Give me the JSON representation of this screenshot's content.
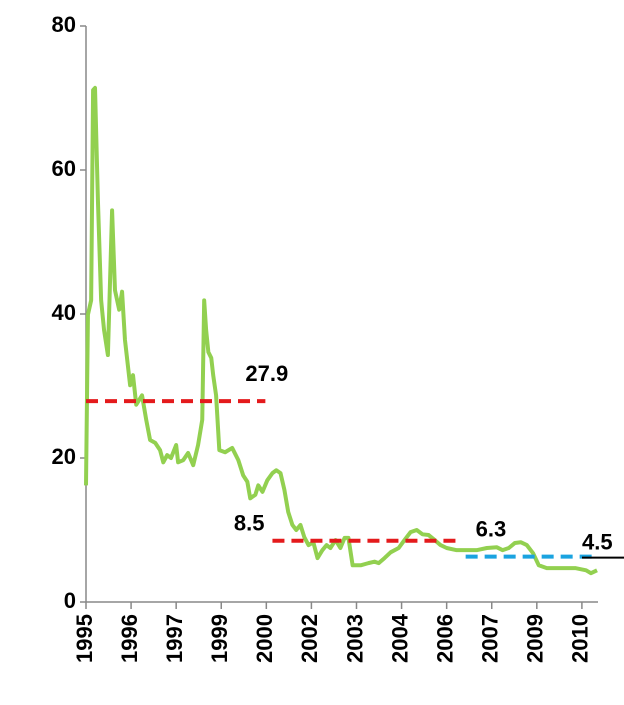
{
  "chart_data": {
    "type": "line",
    "x": [
      1995.0,
      1995.06,
      1995.16,
      1995.22,
      1995.28,
      1995.37,
      1995.47,
      1995.56,
      1995.68,
      1995.81,
      1995.9,
      1996.03,
      1996.12,
      1996.21,
      1996.37,
      1996.46,
      1996.56,
      1996.74,
      1996.87,
      1996.99,
      1997.15,
      1997.3,
      1997.4,
      1997.52,
      1997.64,
      1997.8,
      1997.86,
      1998.02,
      1998.17,
      1998.33,
      1998.48,
      1998.61,
      1998.67,
      1998.73,
      1998.8,
      1998.89,
      1998.95,
      1999.04,
      1999.14,
      1999.32,
      1999.54,
      1999.73,
      1999.88,
      2000.01,
      2000.1,
      2000.26,
      2000.35,
      2000.48,
      2000.63,
      2000.79,
      2000.91,
      2001.04,
      2001.16,
      2001.28,
      2001.41,
      2001.53,
      2001.66,
      2001.78,
      2001.91,
      2002.06,
      2002.19,
      2002.34,
      2002.47,
      2002.59,
      2002.75,
      2002.9,
      2003.03,
      2003.15,
      2003.28,
      2003.53,
      2003.77,
      2003.96,
      2004.09,
      2004.27,
      2004.46,
      2004.71,
      2004.89,
      2005.08,
      2005.27,
      2005.45,
      2005.64,
      2005.83,
      2006.01,
      2006.2,
      2006.51,
      2006.82,
      2007.13,
      2007.45,
      2007.76,
      2007.94,
      2008.13,
      2008.32,
      2008.5,
      2008.69,
      2008.88,
      2009.06,
      2009.31,
      2009.75,
      2010.21,
      2010.53,
      2010.68,
      2010.87
    ],
    "series": [
      {
        "color": "#92d050",
        "values": [
          16.2,
          39.9,
          41.9,
          71.1,
          71.4,
          55.8,
          41.9,
          37.8,
          34.3,
          54.4,
          43.3,
          40.6,
          43.1,
          36.4,
          30.1,
          31.5,
          27.4,
          28.7,
          25.3,
          22.5,
          22.1,
          21.1,
          19.4,
          20.4,
          20.0,
          21.8,
          19.4,
          19.7,
          20.7,
          19.0,
          21.8,
          25.3,
          41.9,
          37.8,
          34.7,
          33.9,
          31.5,
          28.7,
          21.1,
          20.8,
          21.4,
          19.7,
          17.6,
          16.7,
          14.4,
          14.9,
          16.2,
          15.3,
          16.9,
          17.9,
          18.3,
          17.9,
          15.6,
          12.5,
          10.7,
          10.0,
          10.7,
          9.0,
          7.9,
          8.3,
          6.1,
          7.2,
          7.9,
          7.5,
          8.6,
          7.5,
          8.9,
          8.9,
          5.1,
          5.1,
          5.4,
          5.6,
          5.4,
          6.1,
          6.9,
          7.5,
          8.6,
          9.7,
          10.0,
          9.4,
          9.3,
          8.6,
          7.9,
          7.5,
          7.2,
          7.2,
          7.2,
          7.5,
          7.6,
          7.2,
          7.5,
          8.2,
          8.3,
          7.9,
          6.8,
          5.1,
          4.7,
          4.7,
          4.7,
          4.4,
          4.0,
          4.4
        ]
      }
    ],
    "averages": [
      {
        "value": 27.9,
        "x": [
          1995.0,
          2000.57
        ],
        "color": "#e41a1c"
      },
      {
        "value": 8.5,
        "x": [
          2000.79,
          2006.64
        ],
        "color": "#e41a1c"
      },
      {
        "value": 6.3,
        "x": [
          2006.79,
          2010.9
        ],
        "color": "#1aa3e0"
      },
      {
        "value": 4.5
      }
    ],
    "xlim": [
      1995,
      2010.9
    ],
    "xticks": [
      1995,
      {
        "value": 1996.4,
        "label": "1996"
      },
      {
        "value": 1997.8,
        "label": "1997"
      },
      {
        "value": 1999.2,
        "label": "1999"
      },
      {
        "value": 2000.6,
        "label": "2000"
      },
      2002,
      {
        "value": 2003.4,
        "label": "2003"
      },
      {
        "value": 2004.8,
        "label": "2004"
      },
      {
        "value": 2006.2,
        "label": "2006"
      },
      {
        "value": 2007.6,
        "label": "2007"
      },
      2009,
      {
        "value": 2010.4,
        "label": "2010"
      }
    ],
    "ylim": [
      0,
      80
    ],
    "yticks": [
      0,
      20,
      40,
      60,
      80
    ]
  }
}
